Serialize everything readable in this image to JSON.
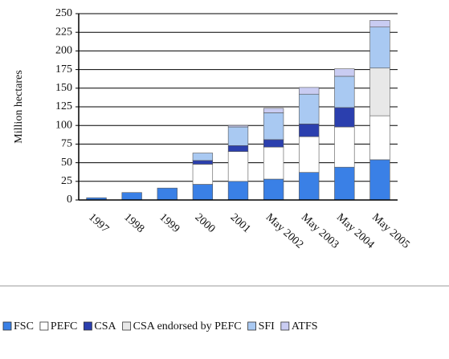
{
  "chart_data": {
    "type": "stacked-bar",
    "y_label": "Million hectares",
    "categories": [
      "1997",
      "1998",
      "1999",
      "2000",
      "2001",
      "May 2002",
      "May 2003",
      "May 2004",
      "May 2005"
    ],
    "series": [
      {
        "name": "FSC",
        "color": "#3a80e6",
        "values": [
          3,
          10,
          16,
          21,
          25,
          28,
          37,
          44,
          54
        ]
      },
      {
        "name": "PEFC",
        "color": "#ffffff",
        "values": [
          0,
          0,
          0,
          27,
          40,
          43,
          48,
          54,
          59
        ]
      },
      {
        "name": "CSA",
        "color": "#2b3fae",
        "values": [
          0,
          0,
          0,
          5,
          8,
          10,
          17,
          26,
          0
        ]
      },
      {
        "name": "CSA endorsed by PEFC",
        "color": "#e8e8e8",
        "values": [
          0,
          0,
          0,
          0,
          0,
          0,
          0,
          0,
          64
        ]
      },
      {
        "name": "SFI",
        "color": "#a9c9f2",
        "values": [
          0,
          0,
          0,
          10,
          25,
          36,
          40,
          42,
          55
        ]
      },
      {
        "name": "ATFS",
        "color": "#c9ccf2",
        "values": [
          0,
          0,
          0,
          0,
          2,
          6,
          9,
          10,
          9
        ]
      }
    ],
    "ylim": [
      0,
      250
    ],
    "yticks": [
      0,
      25,
      50,
      75,
      100,
      125,
      150,
      175,
      200,
      225,
      250
    ],
    "grid": true
  }
}
